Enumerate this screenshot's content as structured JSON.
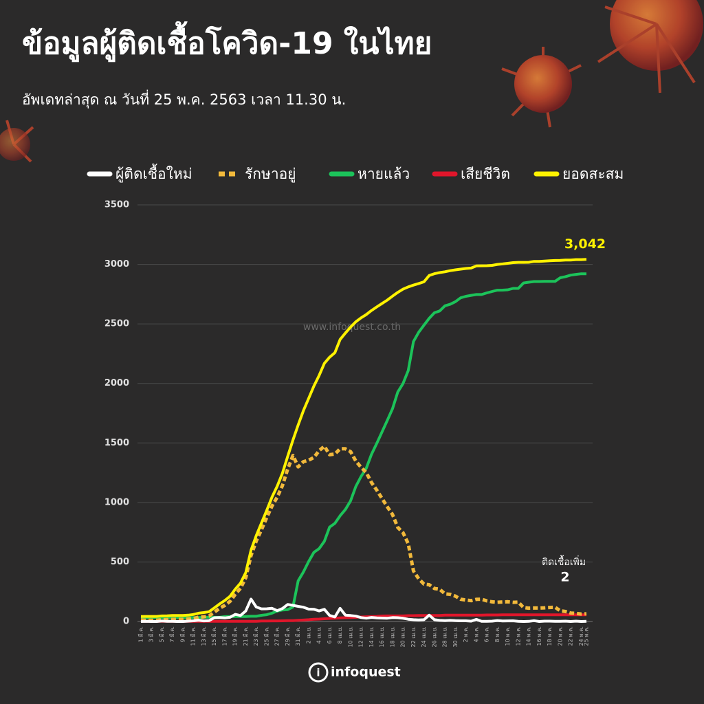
{
  "chart_data": {
    "type": "line",
    "title": "ข้อมูลผู้ติดเชื้อโควิด-19 ในไทย",
    "subtitle": "อัพเดทล่าสุด ณ วันที่  25 พ.ค. 2563 เวลา 11.30 น.",
    "watermark": "www.infoquest.co.th",
    "logo": "infoquest",
    "annotation": "ติดเชื้อเพิ่ม",
    "categories": [
      "1 มี.ค.",
      null,
      "3 มี.ค.",
      null,
      "5 มี.ค.",
      null,
      "7 มี.ค.",
      null,
      "9 มี.ค.",
      null,
      "11 มี.ค.",
      null,
      "13 มี.ค.",
      null,
      "15 มี.ค.",
      null,
      "17 มี.ค.",
      null,
      "19 มี.ค.",
      null,
      "21 มี.ค.",
      null,
      "23 มี.ค.",
      null,
      "25 มี.ค.",
      null,
      "27 มี.ค.",
      null,
      "29 มี.ค.",
      null,
      "31 มี.ค.",
      null,
      "2 เม.ย.",
      null,
      "4 เม.ย.",
      null,
      "6 เม.ย.",
      null,
      "8 เม.ย.",
      null,
      "10 เม.ย.",
      null,
      "12 เม.ย.",
      null,
      "14 เม.ย.",
      null,
      "16 เม.ย.",
      null,
      "18 เม.ย.",
      null,
      "20 เม.ย.",
      null,
      "22 เม.ย.",
      null,
      "24 เม.ย.",
      null,
      "26 เม.ย.",
      null,
      "28 เม.ย.",
      null,
      "30 เม.ย.",
      null,
      "2 พ.ค.",
      null,
      "4 พ.ค.",
      null,
      "6 พ.ค.",
      null,
      "8 พ.ค.",
      null,
      "10 พ.ค.",
      null,
      "12 พ.ค.",
      null,
      "14 พ.ค.",
      null,
      "16 พ.ค.",
      null,
      "18 พ.ค.",
      null,
      "20 พ.ค.",
      null,
      "22 พ.ค.",
      null,
      "24 พ.ค.",
      "25 พ.ค."
    ],
    "series": [
      {
        "name": "ผู้ติดเชื้อใหม่",
        "color": "#ffffff",
        "style": "solid",
        "values": [
          0,
          1,
          0,
          0,
          4,
          1,
          2,
          0,
          0,
          3,
          6,
          11,
          5,
          7,
          32,
          33,
          30,
          35,
          60,
          50,
          89,
          188,
          122,
          106,
          107,
          111,
          91,
          109,
          143,
          136,
          127,
          120,
          104,
          103,
          89,
          102,
          51,
          38,
          111,
          54,
          50,
          45,
          33,
          28,
          34,
          30,
          29,
          28,
          33,
          32,
          27,
          19,
          15,
          13,
          15,
          53,
          15,
          9,
          7,
          9,
          7,
          6,
          6,
          3,
          18,
          1,
          1,
          3,
          8,
          4,
          5,
          6,
          2,
          0,
          1,
          7,
          0,
          3,
          3,
          2,
          1,
          3,
          0,
          3,
          0,
          2
        ]
      },
      {
        "name": "รักษาอยู่",
        "color": "#f2b93b",
        "style": "dashed",
        "values": [
          13,
          11,
          11,
          11,
          15,
          16,
          18,
          18,
          18,
          21,
          25,
          36,
          39,
          46,
          78,
          111,
          135,
          169,
          229,
          279,
          368,
          554,
          676,
          771,
          873,
          970,
          1044,
          1142,
          1281,
          1395,
          1299,
          1343,
          1355,
          1378,
          1435,
          1472,
          1401,
          1407,
          1451,
          1451,
          1427,
          1348,
          1295,
          1251,
          1167,
          1103,
          1033,
          964,
          899,
          790,
          746,
          654,
          425,
          359,
          314,
          309,
          277,
          271,
          232,
          228,
          213,
          187,
          180,
          175,
          186,
          187,
          173,
          165,
          162,
          164,
          166,
          161,
          163,
          117,
          112,
          113,
          113,
          115,
          118,
          120,
          90,
          84,
          71,
          68,
          63,
          65
        ]
      },
      {
        "name": "หายแล้ว",
        "color": "#1cc35a",
        "style": "solid",
        "values": [
          28,
          31,
          31,
          31,
          31,
          31,
          31,
          31,
          31,
          31,
          33,
          33,
          35,
          35,
          35,
          35,
          41,
          42,
          42,
          42,
          42,
          44,
          44,
          52,
          57,
          70,
          87,
          97,
          100,
          122,
          342,
          416,
          505,
          581,
          612,
          674,
          793,
          824,
          888,
          940,
          1013,
          1135,
          1218,
          1288,
          1405,
          1497,
          1593,
          1689,
          1787,
          1928,
          1999,
          2108,
          2352,
          2430,
          2490,
          2547,
          2594,
          2609,
          2652,
          2665,
          2687,
          2719,
          2732,
          2740,
          2747,
          2747,
          2761,
          2772,
          2783,
          2784,
          2787,
          2798,
          2798,
          2844,
          2850,
          2856,
          2856,
          2857,
          2857,
          2857,
          2888,
          2897,
          2910,
          2916,
          2921,
          2921
        ]
      },
      {
        "name": "เสียชีวิต",
        "color": "#e0162b",
        "style": "solid",
        "values": [
          1,
          1,
          1,
          1,
          1,
          1,
          1,
          1,
          1,
          1,
          1,
          1,
          1,
          1,
          1,
          1,
          1,
          1,
          1,
          1,
          1,
          1,
          1,
          4,
          4,
          5,
          5,
          6,
          7,
          7,
          10,
          12,
          15,
          19,
          20,
          23,
          26,
          27,
          30,
          32,
          33,
          35,
          38,
          40,
          41,
          43,
          46,
          47,
          47,
          47,
          47,
          49,
          49,
          50,
          50,
          51,
          51,
          51,
          54,
          54,
          54,
          54,
          54,
          54,
          54,
          54,
          55,
          55,
          55,
          56,
          56,
          56,
          56,
          56,
          56,
          56,
          56,
          56,
          56,
          56,
          56,
          56,
          56,
          56,
          56,
          56
        ]
      },
      {
        "name": "ยอดสะสม",
        "color": "#fff200",
        "style": "solid",
        "values": [
          42,
          43,
          43,
          43,
          47,
          48,
          50,
          50,
          50,
          53,
          59,
          70,
          75,
          82,
          114,
          147,
          177,
          212,
          272,
          322,
          411,
          599,
          721,
          827,
          934,
          1045,
          1136,
          1245,
          1388,
          1524,
          1651,
          1771,
          1875,
          1978,
          2067,
          2169,
          2220,
          2258,
          2369,
          2423,
          2473,
          2518,
          2551,
          2579,
          2613,
          2643,
          2672,
          2700,
          2733,
          2765,
          2792,
          2811,
          2826,
          2839,
          2854,
          2907,
          2922,
          2931,
          2938,
          2947,
          2954,
          2960,
          2966,
          2969,
          2987,
          2988,
          2989,
          2992,
          3000,
          3004,
          3009,
          3015,
          3017,
          3017,
          3018,
          3025,
          3025,
          3028,
          3031,
          3033,
          3034,
          3037,
          3037,
          3040,
          3040,
          3042
        ],
        "value_labels": [
          null,
          null,
          null,
          null,
          null,
          null,
          null,
          null,
          null,
          null,
          null,
          null,
          null,
          null,
          null,
          null,
          null,
          null,
          null,
          null,
          null,
          null,
          null,
          null,
          null,
          null,
          null,
          null,
          null,
          null,
          null,
          null,
          null,
          null,
          null,
          null,
          null,
          null,
          null,
          null,
          null,
          null,
          null,
          null,
          null,
          null,
          null,
          null,
          null,
          null,
          null,
          null,
          null,
          null,
          null,
          null,
          null,
          null,
          null,
          null,
          null,
          null,
          null,
          null,
          null,
          null,
          null,
          null,
          null,
          null,
          null,
          null,
          null,
          null,
          null,
          null,
          null,
          null,
          null,
          null,
          null,
          null,
          null,
          null,
          null,
          "3,042"
        ]
      }
    ],
    "ylim": [
      0,
      3500
    ],
    "yticks": [
      0,
      500,
      1000,
      1500,
      2000,
      2500,
      3000,
      3500
    ],
    "grid": true,
    "legend": "top"
  }
}
